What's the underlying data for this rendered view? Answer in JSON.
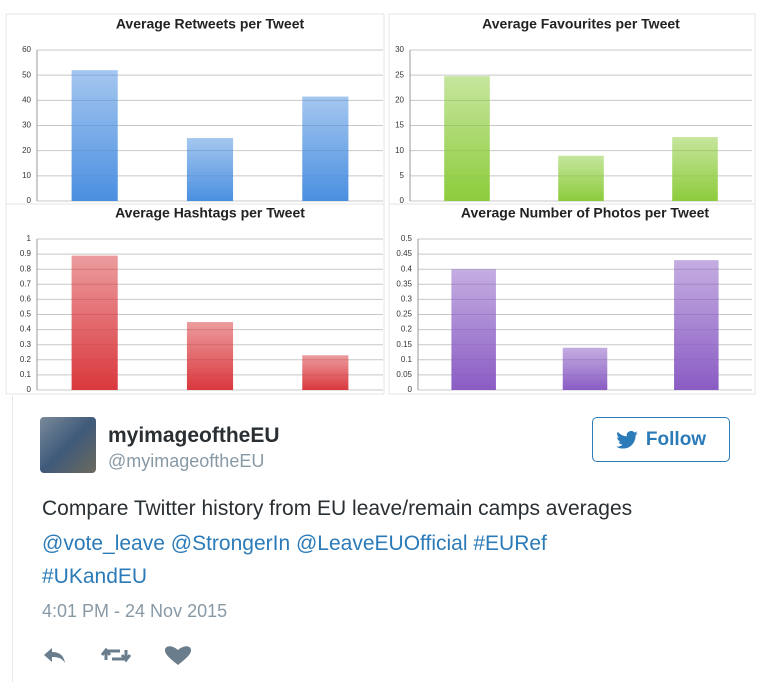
{
  "chart_data": [
    {
      "type": "bar",
      "title": "Average Retweets per Tweet",
      "values": [
        52,
        25,
        41.5
      ],
      "color": "#4a8fe0",
      "ylim": [
        0,
        60
      ],
      "yticks": [
        0,
        10,
        20,
        30,
        40,
        50,
        60
      ],
      "grid": true
    },
    {
      "type": "bar",
      "title": "Average Favourites per Tweet",
      "values": [
        24.8,
        9,
        12.7
      ],
      "color": "#8dcc3c",
      "ylim": [
        0,
        30
      ],
      "yticks": [
        0,
        5,
        10,
        15,
        20,
        25,
        30
      ],
      "grid": true
    },
    {
      "type": "bar",
      "title": "Average Hashtags per Tweet",
      "values": [
        0.89,
        0.45,
        0.23
      ],
      "color": "#d9383d",
      "ylim": [
        0,
        1
      ],
      "yticks": [
        0,
        0.1,
        0.2,
        0.3,
        0.4,
        0.5,
        0.6,
        0.7,
        0.8,
        0.9,
        1
      ],
      "grid": true
    },
    {
      "type": "bar",
      "title": "Average Number of Photos per Tweet",
      "values": [
        0.4,
        0.14,
        0.43
      ],
      "color": "#8a5cc4",
      "ylim": [
        0,
        0.5
      ],
      "yticks": [
        0,
        0.05,
        0.1,
        0.15,
        0.2,
        0.25,
        0.3,
        0.35,
        0.4,
        0.45,
        0.5
      ],
      "grid": true
    }
  ],
  "tweet": {
    "name": "myimageoftheEU",
    "handle": "@myimageoftheEU",
    "follow": "Follow",
    "text": "Compare Twitter history from EU leave/remain camps averages",
    "links": [
      "@vote_leave",
      "@StrongerIn",
      "@LeaveEUOfficial",
      "#EURef",
      "#UKandEU"
    ],
    "timestamp": "4:01 PM - 24 Nov 2015"
  }
}
